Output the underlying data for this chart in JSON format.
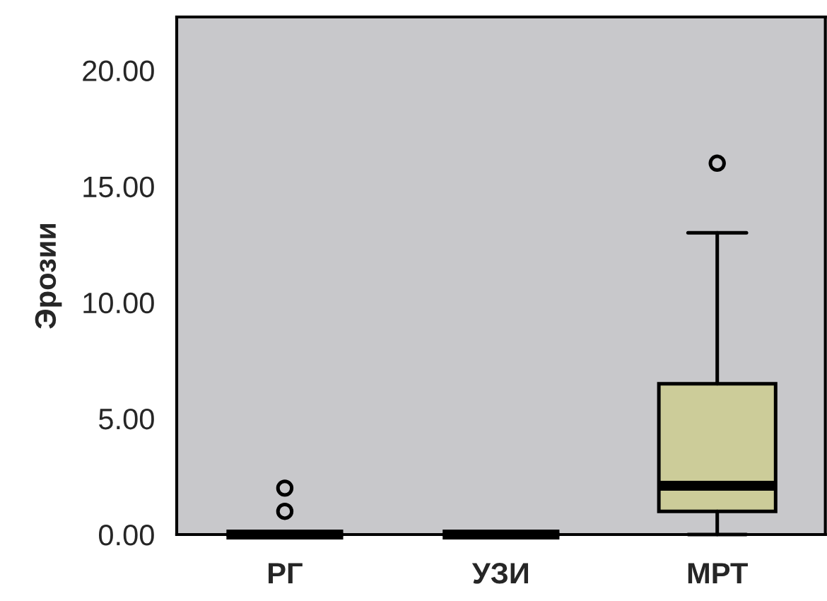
{
  "chart_data": {
    "type": "box",
    "ylabel": "Эрозии",
    "categories": [
      "РГ",
      "УЗИ",
      "МРТ"
    ],
    "boxes": [
      {
        "low": 0,
        "q1": 0,
        "median": 0,
        "q3": 0,
        "high": 0,
        "outliers": [
          1,
          2
        ]
      },
      {
        "low": 0,
        "q1": 0,
        "median": 0,
        "q3": 0,
        "high": 0
      },
      {
        "low": 0,
        "q1": 1,
        "median": 2.1,
        "q3": 6.5,
        "high": 13,
        "outliers": [
          16
        ]
      }
    ],
    "colors": [
      "#000000",
      "#000000",
      "#cccc99"
    ],
    "ylim": [
      0,
      22.3
    ],
    "yticks": [
      {
        "value": 0,
        "label": "0.00"
      },
      {
        "value": 5,
        "label": "5.00"
      },
      {
        "value": 10,
        "label": "10.00"
      },
      {
        "value": 15,
        "label": "15.00"
      },
      {
        "value": 20,
        "label": "20.00"
      }
    ]
  }
}
